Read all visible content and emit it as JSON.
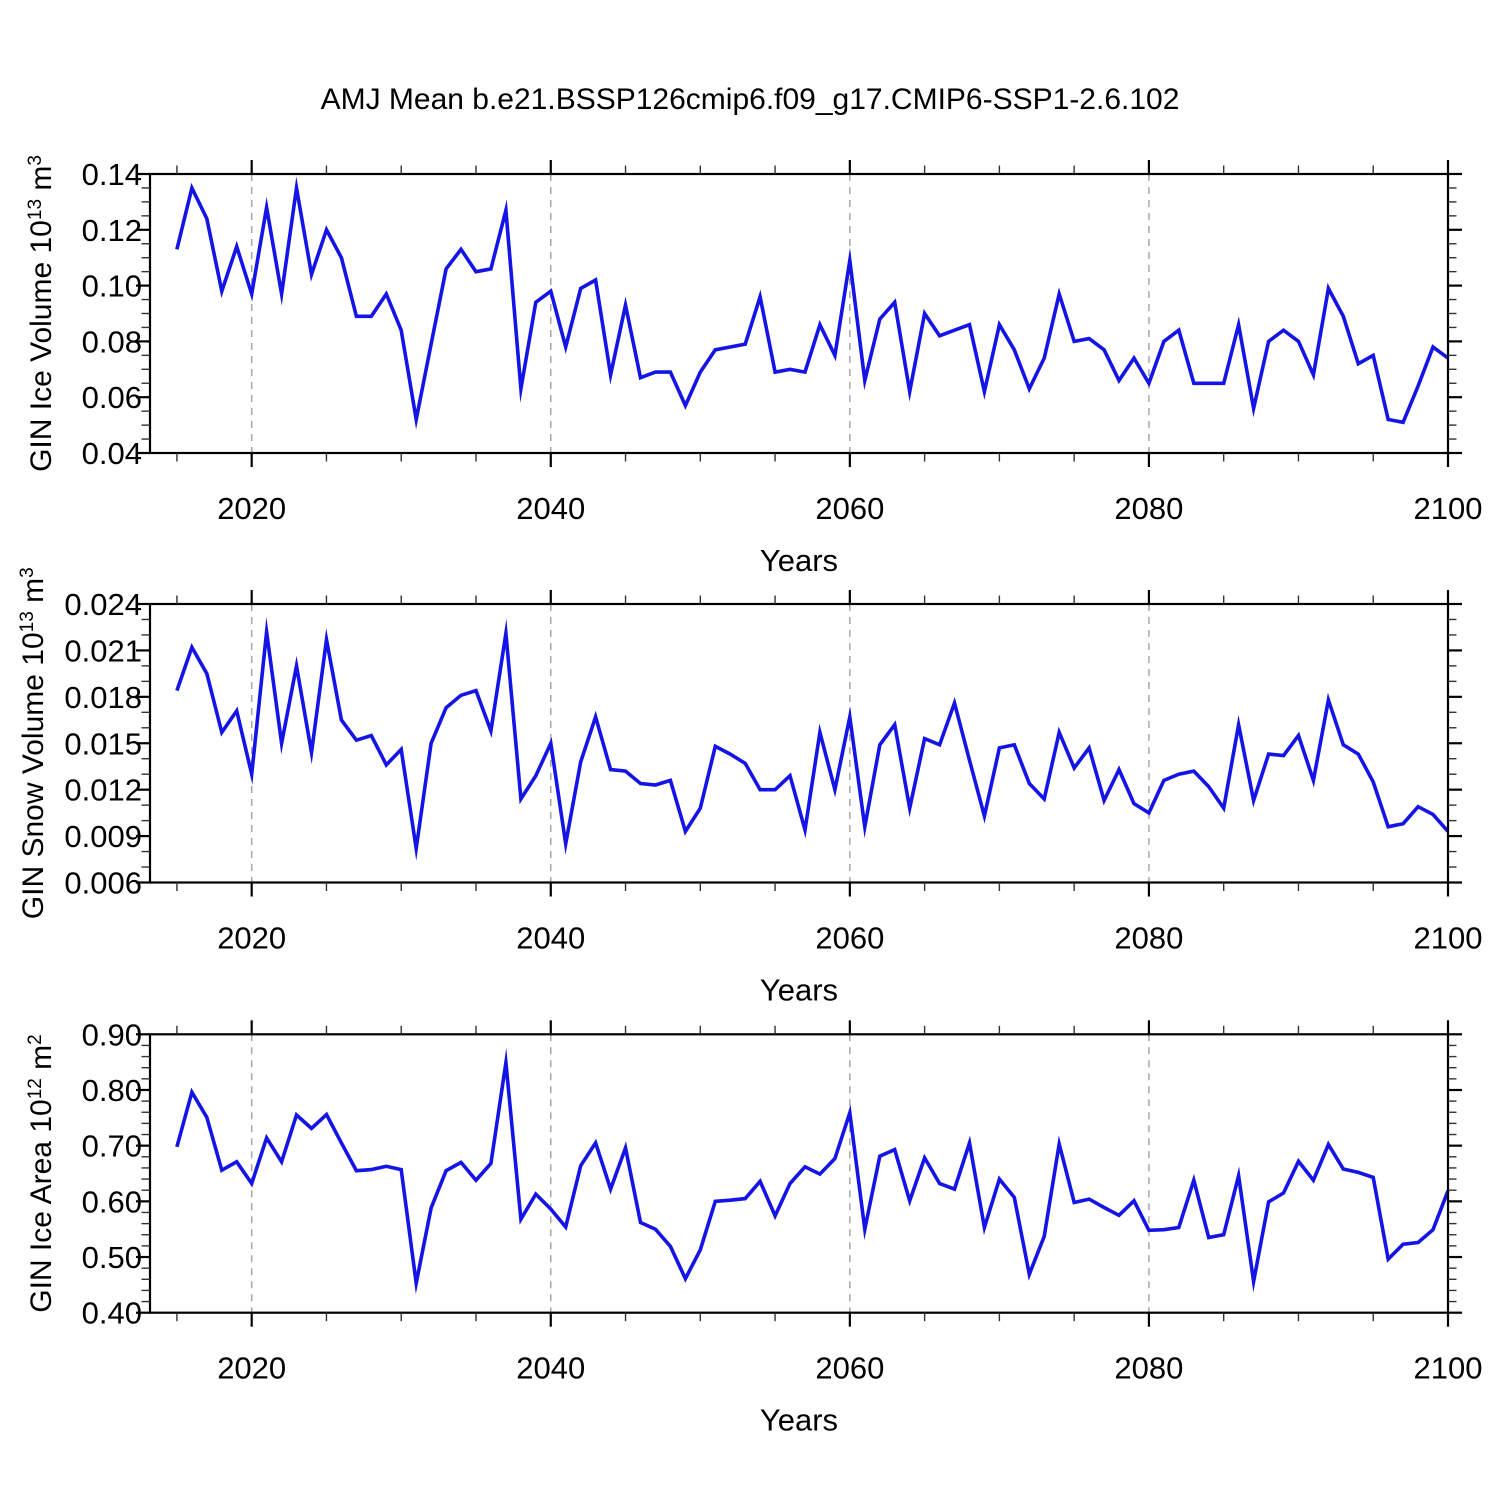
{
  "title": "AMJ Mean b.e21.BSSP126cmip6.f09_g17.CMIP6-SSP1-2.6.102",
  "colors": {
    "line": "#1414E6",
    "frame": "#000000",
    "grid": "#A6A6A6",
    "background": "#FFFFFF",
    "minor_tick": "#333333"
  },
  "x_axis": {
    "label": "Years",
    "xmin": 2013.2,
    "xmax": 2100,
    "start_year": 2015,
    "end_year": 2100,
    "major_ticks": [
      2020,
      2040,
      2060,
      2080,
      2100
    ],
    "tick_labels": [
      "2020",
      "2040",
      "2060",
      "2080",
      "2100"
    ],
    "minor_step": 5,
    "grid_years": [
      2020,
      2040,
      2060,
      2080
    ]
  },
  "chart_data": [
    {
      "type": "line",
      "panel": 1,
      "ylabel": "GIN Ice Volume 10^13 m^3",
      "ylabel_parts": [
        [
          "GIN Ice Volume 10",
          false
        ],
        [
          "13",
          true
        ],
        [
          " m",
          false
        ],
        [
          "3",
          true
        ]
      ],
      "ylim": [
        0.04,
        0.14
      ],
      "ytick_values": [
        0.04,
        0.06,
        0.08,
        0.1,
        0.12,
        0.14
      ],
      "ytick_labels": [
        "0.04",
        "0.06",
        "0.08",
        "0.10",
        "0.12",
        "0.14"
      ],
      "yminor_step": 0.005,
      "x_start": 2015,
      "values": [
        0.113,
        0.135,
        0.124,
        0.098,
        0.114,
        0.097,
        0.128,
        0.097,
        0.135,
        0.104,
        0.12,
        0.11,
        0.089,
        0.089,
        0.097,
        0.084,
        0.052,
        0.079,
        0.106,
        0.113,
        0.105,
        0.106,
        0.127,
        0.063,
        0.094,
        0.098,
        0.078,
        0.099,
        0.102,
        0.068,
        0.093,
        0.067,
        0.069,
        0.069,
        0.057,
        0.069,
        0.077,
        0.078,
        0.079,
        0.096,
        0.069,
        0.07,
        0.069,
        0.086,
        0.075,
        0.109,
        0.066,
        0.088,
        0.094,
        0.062,
        0.09,
        0.082,
        0.084,
        0.086,
        0.062,
        0.086,
        0.077,
        0.063,
        0.074,
        0.097,
        0.08,
        0.081,
        0.077,
        0.066,
        0.074,
        0.065,
        0.08,
        0.084,
        0.065,
        0.065,
        0.065,
        0.086,
        0.056,
        0.08,
        0.084,
        0.08,
        0.068,
        0.099,
        0.089,
        0.072,
        0.075,
        0.052,
        0.051,
        0.064,
        0.078,
        0.074
      ]
    },
    {
      "type": "line",
      "panel": 2,
      "ylabel": "GIN Snow Volume 10^13 m^3",
      "ylabel_parts": [
        [
          "GIN Snow Volume 10",
          false
        ],
        [
          "13",
          true
        ],
        [
          " m",
          false
        ],
        [
          "3",
          true
        ]
      ],
      "ylim": [
        0.006,
        0.024
      ],
      "ytick_values": [
        0.006,
        0.009,
        0.012,
        0.015,
        0.018,
        0.021,
        0.024
      ],
      "ytick_labels": [
        "0.006",
        "0.009",
        "0.012",
        "0.015",
        "0.018",
        "0.021",
        "0.024"
      ],
      "yminor_step": 0.001,
      "x_start": 2015,
      "values": [
        0.0184,
        0.0212,
        0.0195,
        0.0157,
        0.0171,
        0.013,
        0.0222,
        0.015,
        0.02,
        0.0144,
        0.0217,
        0.0165,
        0.0152,
        0.0155,
        0.0136,
        0.0146,
        0.0082,
        0.015,
        0.0173,
        0.0181,
        0.0184,
        0.0158,
        0.0221,
        0.0114,
        0.0129,
        0.015,
        0.0085,
        0.0138,
        0.0167,
        0.0133,
        0.0132,
        0.0124,
        0.0123,
        0.0126,
        0.0093,
        0.0108,
        0.0148,
        0.0143,
        0.0137,
        0.012,
        0.012,
        0.0129,
        0.0094,
        0.0157,
        0.012,
        0.0167,
        0.0096,
        0.0149,
        0.0162,
        0.0108,
        0.0153,
        0.0149,
        0.0176,
        0.0139,
        0.0103,
        0.0147,
        0.0149,
        0.0124,
        0.0114,
        0.0157,
        0.0134,
        0.0147,
        0.0113,
        0.0133,
        0.0111,
        0.0105,
        0.0126,
        0.013,
        0.0132,
        0.0122,
        0.0108,
        0.0162,
        0.0113,
        0.0143,
        0.0142,
        0.0155,
        0.0126,
        0.0178,
        0.0149,
        0.0143,
        0.0125,
        0.0096,
        0.0098,
        0.0109,
        0.0104,
        0.0093
      ]
    },
    {
      "type": "line",
      "panel": 3,
      "ylabel": "GIN Ice Area 10^12 m^2",
      "ylabel_parts": [
        [
          "GIN Ice Area 10",
          false
        ],
        [
          "12",
          true
        ],
        [
          " m",
          false
        ],
        [
          "2",
          true
        ]
      ],
      "ylim": [
        0.4,
        0.9
      ],
      "ytick_values": [
        0.4,
        0.5,
        0.6,
        0.7,
        0.8,
        0.9
      ],
      "ytick_labels": [
        "0.40",
        "0.50",
        "0.60",
        "0.70",
        "0.80",
        "0.90"
      ],
      "yminor_step": 0.02,
      "x_start": 2015,
      "values": [
        0.698,
        0.796,
        0.751,
        0.656,
        0.671,
        0.632,
        0.714,
        0.671,
        0.755,
        0.731,
        0.756,
        0.705,
        0.655,
        0.657,
        0.663,
        0.657,
        0.453,
        0.588,
        0.655,
        0.67,
        0.638,
        0.668,
        0.849,
        0.568,
        0.613,
        0.586,
        0.554,
        0.664,
        0.705,
        0.622,
        0.696,
        0.562,
        0.55,
        0.519,
        0.461,
        0.513,
        0.6,
        0.602,
        0.605,
        0.636,
        0.574,
        0.632,
        0.662,
        0.649,
        0.677,
        0.759,
        0.55,
        0.681,
        0.693,
        0.601,
        0.678,
        0.632,
        0.622,
        0.705,
        0.553,
        0.64,
        0.607,
        0.469,
        0.537,
        0.703,
        0.598,
        0.604,
        0.589,
        0.575,
        0.601,
        0.548,
        0.549,
        0.553,
        0.638,
        0.535,
        0.54,
        0.646,
        0.456,
        0.599,
        0.615,
        0.672,
        0.638,
        0.702,
        0.658,
        0.652,
        0.643,
        0.496,
        0.523,
        0.526,
        0.549,
        0.619
      ]
    }
  ]
}
